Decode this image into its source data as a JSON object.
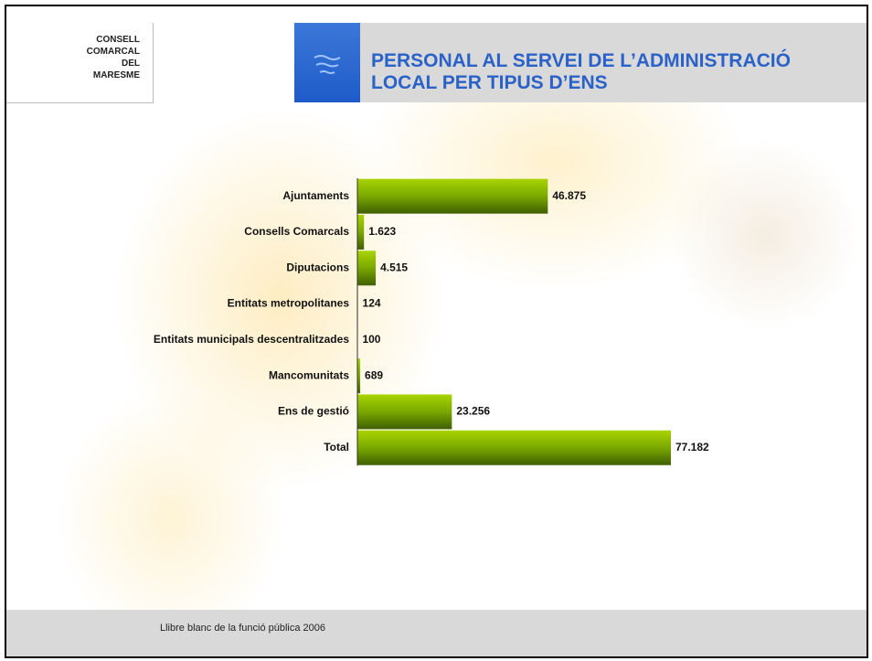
{
  "header": {
    "logo": [
      "CONSELL",
      "COMARCAL",
      "DEL",
      "MARESME"
    ]
  },
  "chart_data": {
    "type": "barh",
    "title": "PERSONAL AL SERVEI DE L’ADMINISTRACIÓ LOCAL PER TIPUS D’ENS",
    "categories": [
      "Ajuntaments",
      "Consells Comarcals",
      "Diputacions",
      "Entitats metropolitanes",
      "Entitats municipals descentralitzades",
      "Mancomunitats",
      "Ens de gestió",
      "Total"
    ],
    "values": [
      46875,
      1623,
      4515,
      124,
      100,
      689,
      23256,
      77182
    ],
    "value_labels": [
      "46.875",
      "1.623",
      "4.515",
      "124",
      "100",
      "689",
      "23.256",
      "77.182"
    ],
    "color": "#6e9a00"
  },
  "footer": {
    "source": "Llibre blanc de la funció pública 2006"
  }
}
